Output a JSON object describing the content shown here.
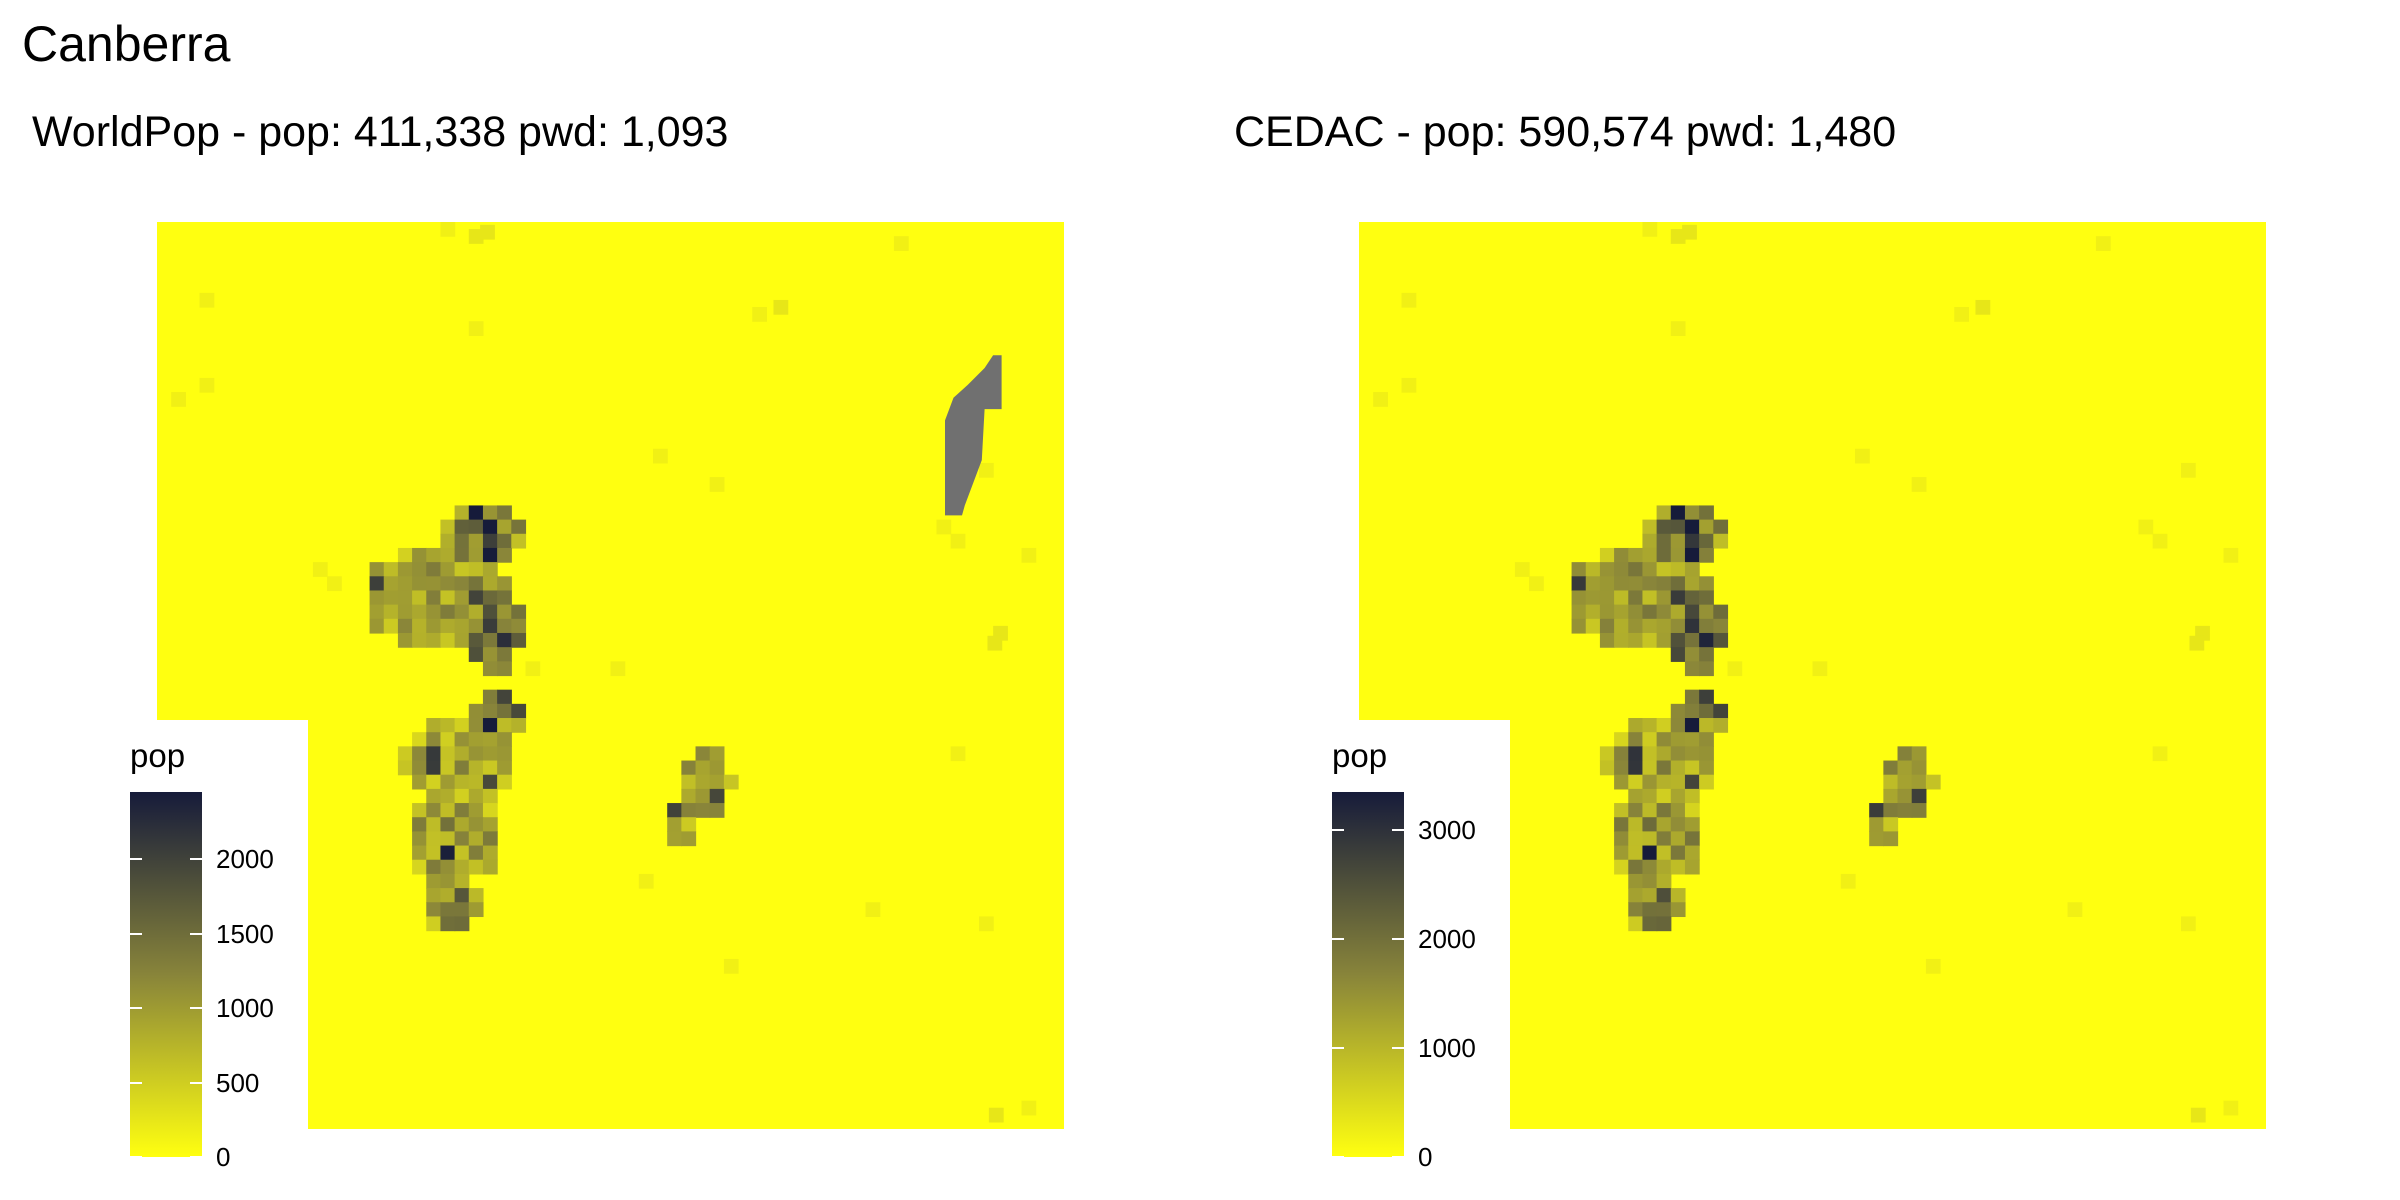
{
  "title": "Canberra",
  "colors": {
    "low": "#FFFF10",
    "high": "#161B3A",
    "missing": "#707070",
    "background": "#FFFFFF"
  },
  "chart_data": [
    {
      "type": "heatmap",
      "title": "WorldPop - pop: 411,338 pwd: 1,093",
      "legend_title": "pop",
      "legend_placement": "bottom-left",
      "color_range": [
        0,
        2450
      ],
      "legend_ticks": [
        {
          "value": 0,
          "label": "0"
        },
        {
          "value": 500,
          "label": "500"
        },
        {
          "value": 1000,
          "label": "1000"
        },
        {
          "value": 1500,
          "label": "1500"
        },
        {
          "value": 2000,
          "label": "2000"
        }
      ],
      "has_missing_region": true
    },
    {
      "type": "heatmap",
      "title": "CEDAC - pop: 590,574 pwd: 1,480",
      "legend_title": "pop",
      "legend_placement": "bottom-left",
      "color_range": [
        0,
        3350
      ],
      "legend_ticks": [
        {
          "value": 0,
          "label": "0"
        },
        {
          "value": 1000,
          "label": "1000"
        },
        {
          "value": 2000,
          "label": "2000"
        },
        {
          "value": 3000,
          "label": "3000"
        }
      ],
      "has_missing_region": false
    }
  ]
}
